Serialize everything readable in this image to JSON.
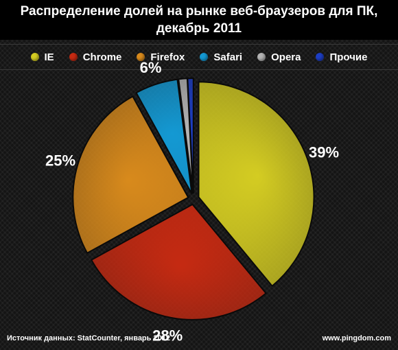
{
  "chart_data": {
    "type": "pie",
    "title_lines": [
      "Распределение долей на рынке веб-браузеров для ПК,",
      "декабрь 2011"
    ],
    "slices": [
      {
        "name": "IE",
        "value": 39,
        "label": "39%",
        "color": "#d4cc22"
      },
      {
        "name": "Chrome",
        "value": 28,
        "label": "28%",
        "color": "#c52a12"
      },
      {
        "name": "Firefox",
        "value": 25,
        "label": "25%",
        "color": "#d88a1c"
      },
      {
        "name": "Safari",
        "value": 6,
        "label": "6%",
        "color": "#1499d3"
      },
      {
        "name": "Opera",
        "value": 1.2,
        "label": "",
        "color": "#b4b4b4"
      },
      {
        "name": "Прочие",
        "value": 0.8,
        "label": "",
        "color": "#1d3ec4"
      }
    ],
    "legend_position": "top"
  },
  "footer": {
    "source": "Источник данных: StatCounter, январь 2012",
    "site": "www.pingdom.com"
  }
}
